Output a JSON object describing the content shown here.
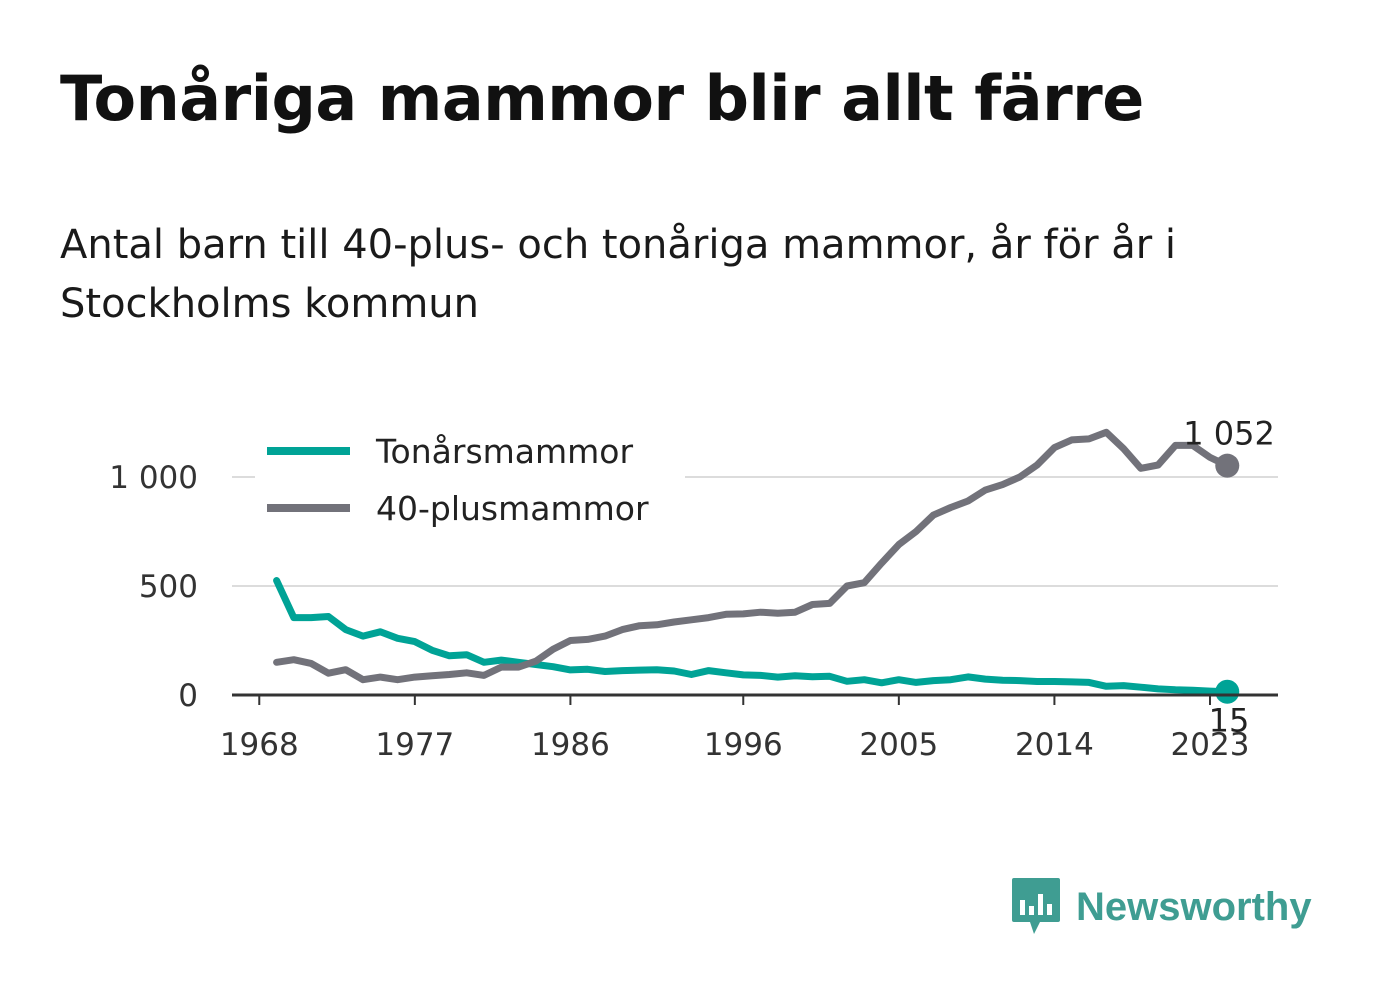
{
  "title": "Tonåriga mammor blir allt färre",
  "subtitle": "Antal barn till 40-plus- och tonåriga mammor, år för år i Stockholms kommun",
  "brand": {
    "name": "Newsworthy",
    "icon": "bar-chart-speech-bubble-icon",
    "color": "#3f9d92"
  },
  "chart_data": {
    "type": "line",
    "x": [
      1969,
      1970,
      1971,
      1972,
      1973,
      1974,
      1975,
      1976,
      1977,
      1978,
      1979,
      1980,
      1981,
      1982,
      1983,
      1984,
      1985,
      1986,
      1987,
      1988,
      1989,
      1990,
      1991,
      1992,
      1993,
      1994,
      1995,
      1996,
      1997,
      1998,
      1999,
      2000,
      2001,
      2002,
      2003,
      2004,
      2005,
      2006,
      2007,
      2008,
      2009,
      2010,
      2011,
      2012,
      2013,
      2014,
      2015,
      2016,
      2017,
      2018,
      2019,
      2020,
      2021,
      2022,
      2023,
      2024
    ],
    "series": [
      {
        "name": "Tonårsmammor",
        "color": "#00a396",
        "values": [
          525,
          355,
          355,
          360,
          300,
          270,
          290,
          260,
          245,
          205,
          180,
          185,
          150,
          160,
          150,
          140,
          130,
          115,
          118,
          108,
          112,
          114,
          116,
          110,
          94,
          112,
          102,
          92,
          90,
          82,
          88,
          84,
          86,
          63,
          70,
          56,
          70,
          58,
          66,
          70,
          83,
          73,
          68,
          66,
          62,
          62,
          60,
          58,
          40,
          43,
          36,
          28,
          24,
          22,
          18,
          15
        ]
      },
      {
        "name": "40-plusmammor",
        "color": "#72727a",
        "values": [
          150,
          162,
          145,
          100,
          116,
          70,
          82,
          70,
          82,
          88,
          94,
          102,
          90,
          128,
          128,
          155,
          210,
          250,
          255,
          270,
          300,
          318,
          322,
          335,
          345,
          355,
          370,
          372,
          380,
          375,
          380,
          415,
          420,
          500,
          515,
          605,
          690,
          750,
          825,
          860,
          890,
          940,
          965,
          1000,
          1055,
          1135,
          1170,
          1175,
          1205,
          1130,
          1040,
          1055,
          1145,
          1145,
          1090,
          1052
        ]
      }
    ],
    "end_labels": [
      "15",
      "1 052"
    ],
    "xticks": [
      "1968",
      "1977",
      "1986",
      "1996",
      "2005",
      "2014",
      "2023"
    ],
    "yticks": [
      "0",
      "500",
      "1 000"
    ],
    "ylim": [
      0,
      1220
    ],
    "grid": true,
    "legend": "top-left"
  }
}
